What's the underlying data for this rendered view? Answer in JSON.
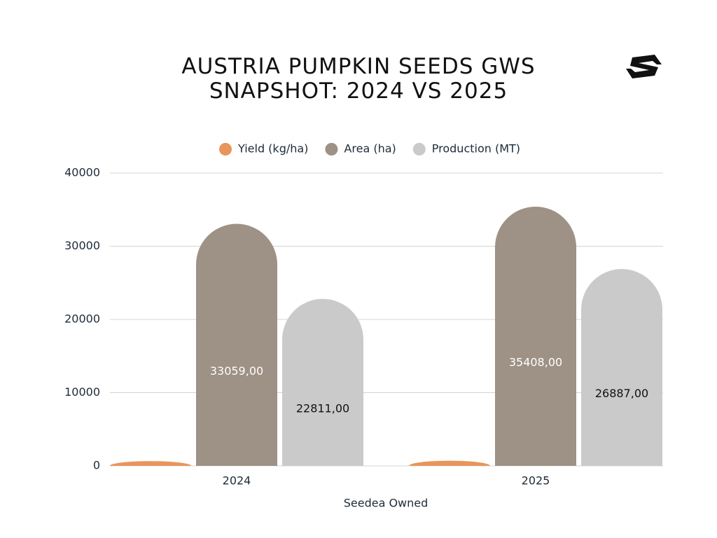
{
  "chart_data": {
    "type": "bar",
    "title": "AUSTRIA PUMPKIN SEEDS GWS SNAPSHOT: 2024 VS 2025",
    "categories": [
      "2024",
      "2025"
    ],
    "xlabel": "Seedea Owned",
    "series": [
      {
        "name": "Yield (kg/ha)",
        "color": "#e8955a",
        "values": [
          650,
          700
        ]
      },
      {
        "name": "Area (ha)",
        "color": "#9e9185",
        "values": [
          33059,
          35408
        ],
        "value_labels": [
          "33059,00",
          "35408,00"
        ],
        "label_color": "#ffffff"
      },
      {
        "name": "Production (MT)",
        "color": "#cacaca",
        "values": [
          22811,
          26887
        ],
        "value_labels": [
          "22811,00",
          "26887,00"
        ],
        "label_color": "#111111"
      }
    ],
    "ylim": [
      0,
      40000
    ],
    "yticks": [
      0,
      10000,
      20000,
      30000,
      40000
    ],
    "grid": true,
    "legend": "top"
  }
}
